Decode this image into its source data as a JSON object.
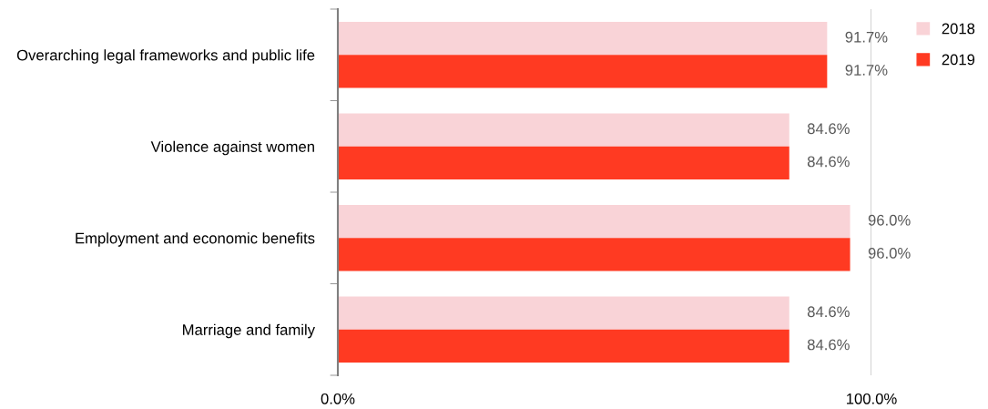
{
  "chart_data": {
    "type": "bar",
    "orientation": "horizontal",
    "categories": [
      "Overarching legal frameworks and public life",
      "Violence against women",
      "Employment and economic benefits",
      "Marriage and family"
    ],
    "series": [
      {
        "name": "2018",
        "color": "#f9d3d7",
        "values": [
          91.7,
          84.6,
          96.0,
          84.6
        ],
        "value_labels": [
          "91.7%",
          "84.6%",
          "96.0%",
          "84.6%"
        ]
      },
      {
        "name": "2019",
        "color": "#ff3a22",
        "values": [
          91.7,
          84.6,
          96.0,
          84.6
        ],
        "value_labels": [
          "91.7%",
          "84.6%",
          "96.0%",
          "84.6%"
        ]
      }
    ],
    "xlim": [
      0,
      100
    ],
    "xticks": [
      {
        "value": 0,
        "label": "0.0%"
      },
      {
        "value": 100,
        "label": "100.0%"
      }
    ],
    "ref_lines": [
      {
        "axis": "x",
        "value": 100,
        "color": "#bfbfbf"
      }
    ],
    "legend": "right"
  }
}
